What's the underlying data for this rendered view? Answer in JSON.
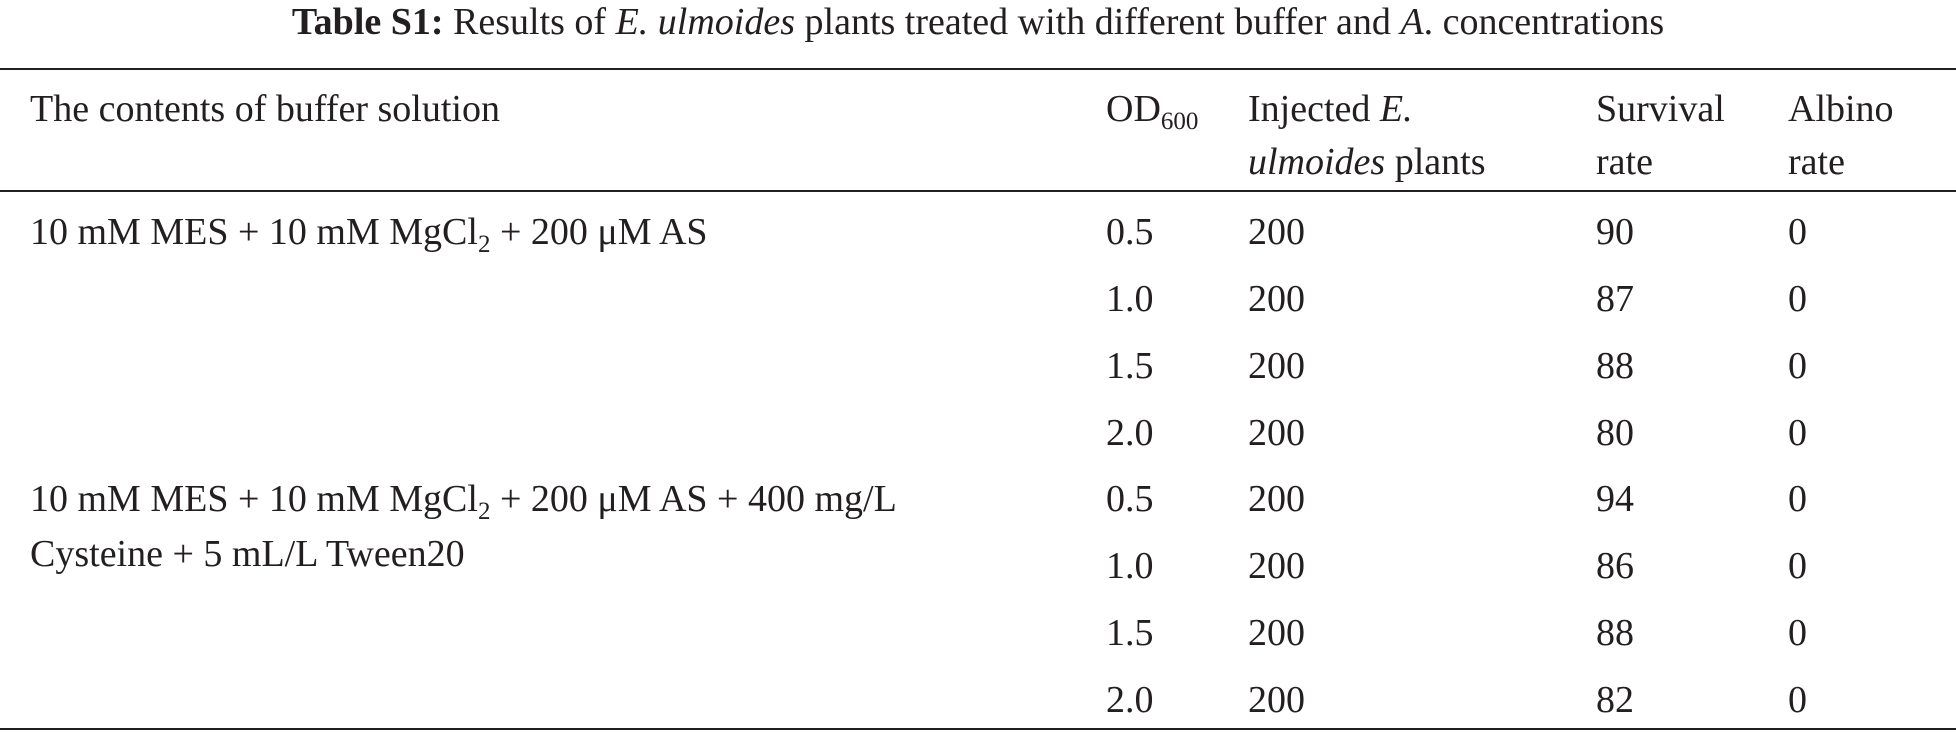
{
  "caption": {
    "label": "Table S1:",
    "text_before": " Results of ",
    "species_italic": "E. ulmoides",
    "text_middle": " plants treated with different buffer and ",
    "genus_italic": "A",
    "text_after": ". concentrations"
  },
  "header": {
    "buffer": "The contents of buffer solution",
    "od_main": "OD",
    "od_sub": "600",
    "injected_line1_text": "Injected ",
    "injected_line1_italic": "E.",
    "injected_line2_italic": "ulmoides",
    "injected_line2_text": " plants",
    "survival_line1": "Survival",
    "survival_line2": "rate",
    "albino_line1": "Albino",
    "albino_line2": "rate"
  },
  "groups": [
    {
      "buffer_line1_pre": "10 mM MES + 10 mM MgCl",
      "buffer_line1_sub": "2",
      "buffer_line1_post": " + 200 μM AS",
      "buffer_line2": "",
      "rows": [
        {
          "od": "0.5",
          "injected": "200",
          "survival": "90",
          "albino": "0"
        },
        {
          "od": "1.0",
          "injected": "200",
          "survival": "87",
          "albino": "0"
        },
        {
          "od": "1.5",
          "injected": "200",
          "survival": "88",
          "albino": "0"
        },
        {
          "od": "2.0",
          "injected": "200",
          "survival": "80",
          "albino": "0"
        }
      ]
    },
    {
      "buffer_line1_pre": "10 mM MES + 10 mM MgCl",
      "buffer_line1_sub": "2",
      "buffer_line1_post": " + 200 μM AS + 400 mg/L",
      "buffer_line2": "Cysteine + 5 mL/L Tween20",
      "rows": [
        {
          "od": "0.5",
          "injected": "200",
          "survival": "94",
          "albino": "0"
        },
        {
          "od": "1.0",
          "injected": "200",
          "survival": "86",
          "albino": "0"
        },
        {
          "od": "1.5",
          "injected": "200",
          "survival": "88",
          "albino": "0"
        },
        {
          "od": "2.0",
          "injected": "200",
          "survival": "82",
          "albino": "0"
        }
      ]
    }
  ]
}
